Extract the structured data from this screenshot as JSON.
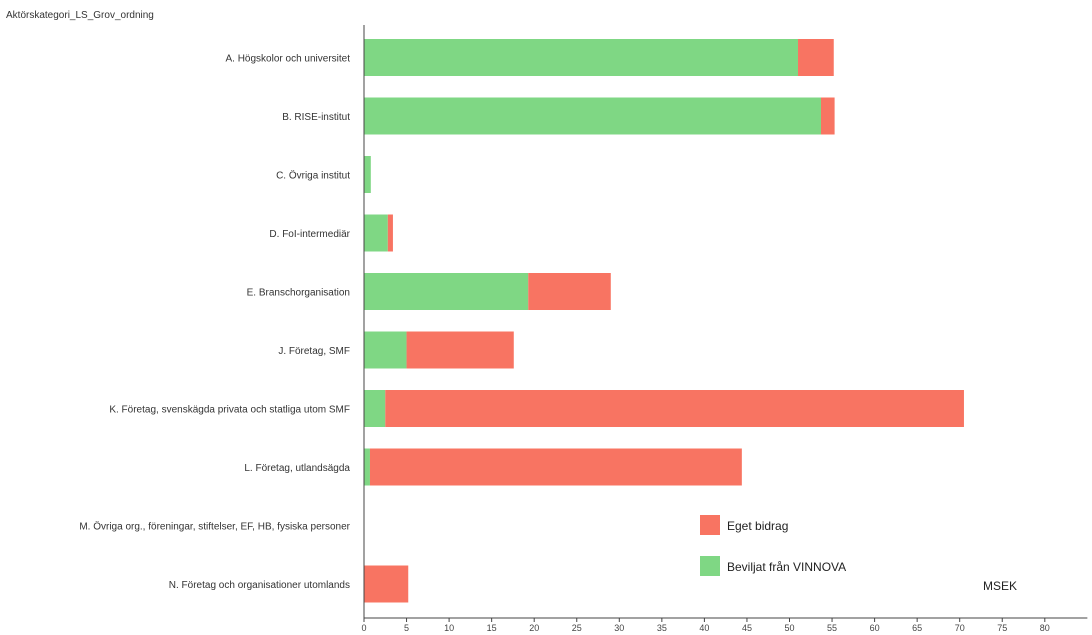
{
  "field_label": "Aktörskategori_LS_Grov_ordning",
  "chart_data": {
    "type": "bar",
    "orientation": "horizontal",
    "stacked": true,
    "categories": [
      "A. Högskolor och universitet",
      "B. RISE-institut",
      "C. Övriga institut",
      "D. FoI-intermediär",
      "E. Branschorganisation",
      "J. Företag, SMF",
      "K. Företag, svenskägda privata och statliga utom SMF",
      "L. Företag, utlandsägda",
      "M. Övriga org., föreningar, stiftelser, EF, HB, fysiska personer",
      "N. Företag och organisationer utomlands"
    ],
    "series": [
      {
        "name": "Beviljat från VINNOVA",
        "color": "#7fd784",
        "values": [
          51.0,
          53.7,
          0.8,
          2.8,
          19.3,
          5.0,
          2.5,
          0.7,
          0,
          0
        ]
      },
      {
        "name": "Eget bidrag",
        "color": "#f87462",
        "values": [
          4.2,
          1.6,
          0,
          0.6,
          9.7,
          12.6,
          68.0,
          43.7,
          0,
          5.2
        ]
      }
    ],
    "xticks": [
      "0",
      "5",
      "10",
      "15",
      "20",
      "25",
      "30",
      "35",
      "40",
      "45",
      "50",
      "55",
      "60",
      "65",
      "70",
      "75",
      "80"
    ],
    "xlim": [
      0,
      85
    ],
    "unit_label": "MSEK",
    "legend": [
      {
        "label": "Eget bidrag",
        "color": "#f87462"
      },
      {
        "label": "Beviljat från VINNOVA",
        "color": "#7fd784"
      }
    ],
    "legend_position": "bottom-right",
    "grid": false
  }
}
